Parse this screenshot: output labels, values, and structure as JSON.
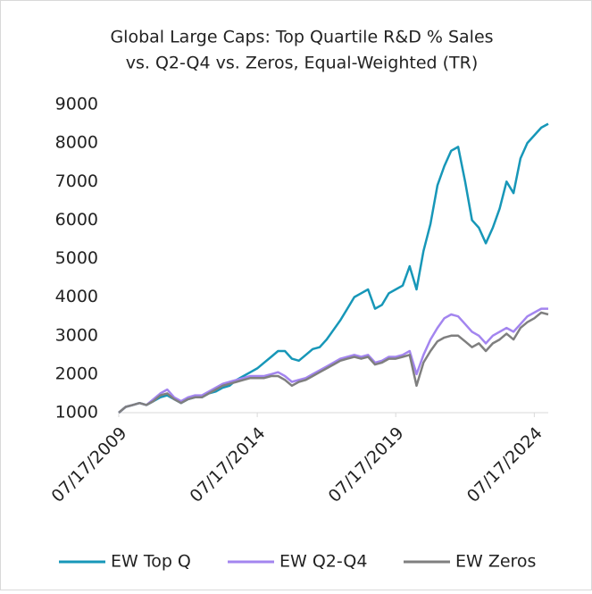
{
  "chart_data": {
    "type": "line",
    "title": [
      "Global Large Caps: Top Quartile R&D % Sales",
      "vs. Q2-Q4 vs. Zeros, Equal-Weighted (TR)"
    ],
    "x": [
      "07/17/2009",
      "10/17/2009",
      "01/17/2010",
      "04/17/2010",
      "07/17/2010",
      "10/17/2010",
      "01/17/2011",
      "04/17/2011",
      "07/17/2011",
      "10/17/2011",
      "01/17/2012",
      "04/17/2012",
      "07/17/2012",
      "10/17/2012",
      "01/17/2013",
      "04/17/2013",
      "07/17/2013",
      "10/17/2013",
      "01/17/2014",
      "04/17/2014",
      "07/17/2014",
      "10/17/2014",
      "01/17/2015",
      "04/17/2015",
      "07/17/2015",
      "10/17/2015",
      "01/17/2016",
      "04/17/2016",
      "07/17/2016",
      "10/17/2016",
      "01/17/2017",
      "04/17/2017",
      "07/17/2017",
      "10/17/2017",
      "01/17/2018",
      "04/17/2018",
      "07/17/2018",
      "10/17/2018",
      "01/17/2019",
      "04/17/2019",
      "07/17/2019",
      "10/17/2019",
      "01/17/2020",
      "04/17/2020",
      "07/17/2020",
      "10/17/2020",
      "01/17/2021",
      "04/17/2021",
      "07/17/2021",
      "10/17/2021",
      "01/17/2022",
      "04/17/2022",
      "07/17/2022",
      "10/17/2022",
      "01/17/2023",
      "04/17/2023",
      "07/17/2023",
      "10/17/2023",
      "01/17/2024",
      "04/17/2024",
      "07/17/2024",
      "10/17/2024",
      "01/17/2025"
    ],
    "series": [
      {
        "name": "EW Top Q",
        "color": "#1797b8",
        "values": [
          1000,
          1150,
          1200,
          1250,
          1200,
          1300,
          1400,
          1450,
          1350,
          1250,
          1350,
          1400,
          1400,
          1500,
          1550,
          1650,
          1700,
          1850,
          1950,
          2050,
          2150,
          2300,
          2450,
          2600,
          2600,
          2400,
          2350,
          2500,
          2650,
          2700,
          2900,
          3150,
          3400,
          3700,
          4000,
          4100,
          4200,
          3700,
          3800,
          4100,
          4200,
          4300,
          4800,
          4200,
          5200,
          5900,
          6900,
          7400,
          7800,
          7900,
          7000,
          6000,
          5800,
          5400,
          5800,
          6300,
          7000,
          6700,
          7600,
          8000,
          8200,
          8400,
          8500
        ]
      },
      {
        "name": "EW Q2-Q4",
        "color": "#a385ef",
        "values": [
          1000,
          1150,
          1200,
          1250,
          1200,
          1350,
          1500,
          1600,
          1400,
          1300,
          1400,
          1450,
          1450,
          1550,
          1650,
          1750,
          1800,
          1850,
          1900,
          1950,
          1950,
          1950,
          2000,
          2050,
          1950,
          1800,
          1850,
          1900,
          2000,
          2100,
          2200,
          2300,
          2400,
          2450,
          2500,
          2450,
          2500,
          2300,
          2350,
          2450,
          2450,
          2500,
          2600,
          2000,
          2500,
          2900,
          3200,
          3450,
          3550,
          3500,
          3300,
          3100,
          3000,
          2800,
          3000,
          3100,
          3200,
          3100,
          3300,
          3500,
          3600,
          3700,
          3700
        ]
      },
      {
        "name": "EW Zeros",
        "color": "#7f7f7f",
        "values": [
          1000,
          1150,
          1200,
          1250,
          1200,
          1300,
          1450,
          1500,
          1350,
          1250,
          1350,
          1400,
          1400,
          1500,
          1600,
          1700,
          1750,
          1800,
          1850,
          1900,
          1900,
          1900,
          1950,
          1950,
          1850,
          1700,
          1800,
          1850,
          1950,
          2050,
          2150,
          2250,
          2350,
          2400,
          2450,
          2400,
          2450,
          2250,
          2300,
          2400,
          2400,
          2450,
          2500,
          1700,
          2300,
          2600,
          2850,
          2950,
          3000,
          3000,
          2850,
          2700,
          2800,
          2600,
          2800,
          2900,
          3050,
          2900,
          3200,
          3350,
          3450,
          3600,
          3550
        ]
      }
    ],
    "xlim": [
      "07/17/2009",
      "01/17/2025"
    ],
    "xticks": [
      "07/17/2009",
      "07/17/2014",
      "07/17/2019",
      "07/17/2024"
    ],
    "ylim": [
      1000,
      9000
    ],
    "yticks": [
      1000,
      2000,
      3000,
      4000,
      5000,
      6000,
      7000,
      8000,
      9000
    ],
    "grid": false,
    "legend": "bottom"
  }
}
